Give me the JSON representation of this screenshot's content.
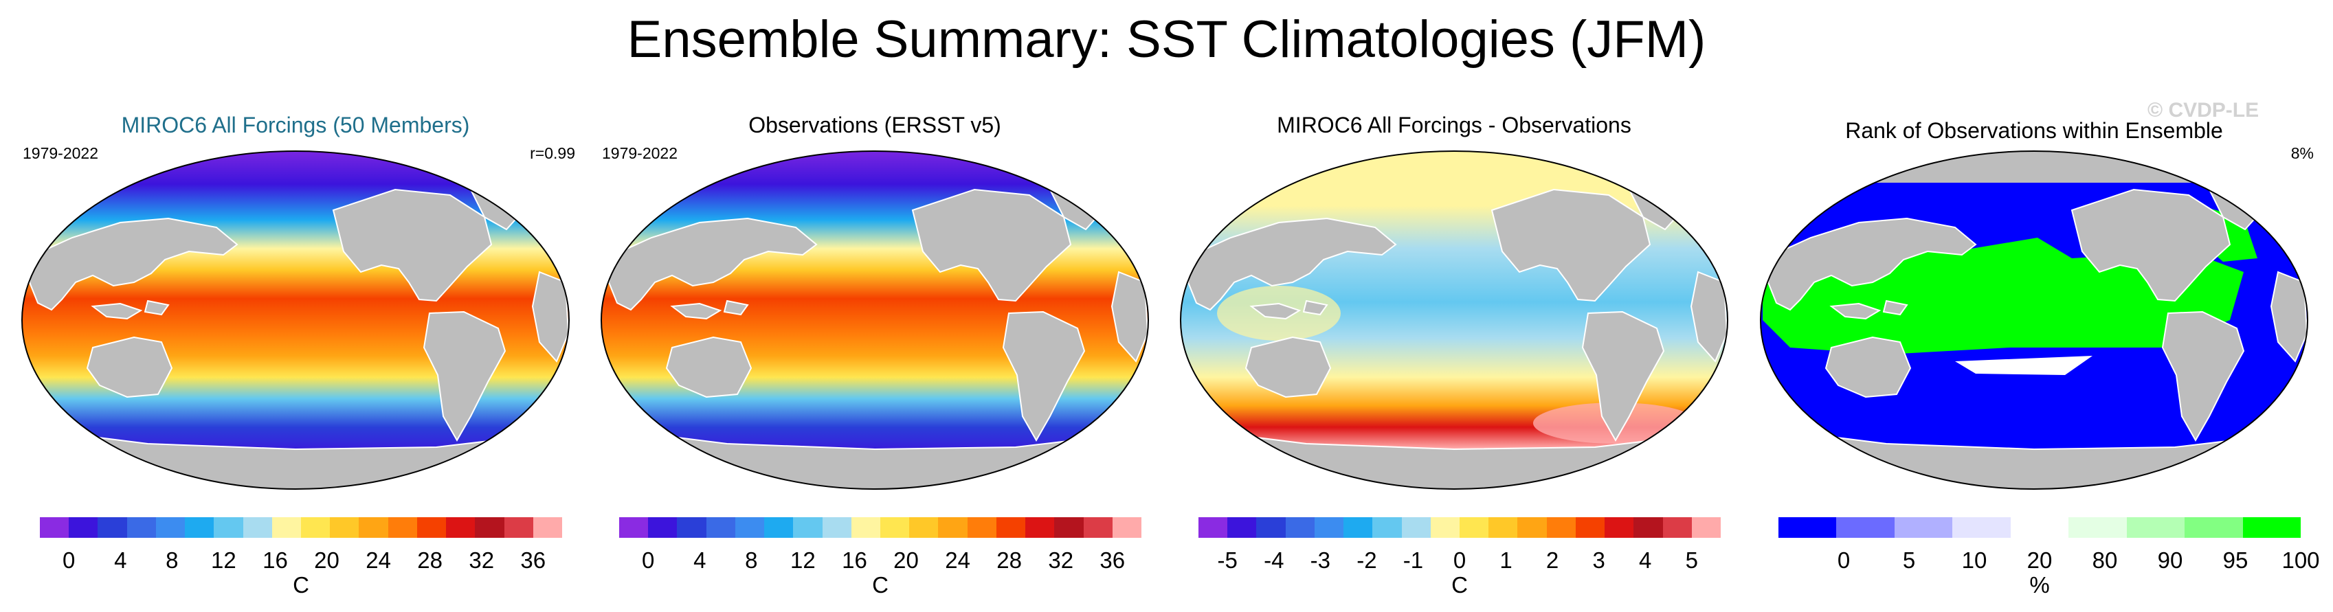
{
  "title": "Ensemble Summary: SST Climatologies (JFM)",
  "watermark": "© CVDP-LE",
  "panels": [
    {
      "title": "MIROC6 All Forcings (50 Members)",
      "left_label": "1979-2022",
      "right_label": "r=0.99",
      "unit": "C",
      "ticks": [
        "0",
        "4",
        "8",
        "12",
        "16",
        "20",
        "24",
        "28",
        "32",
        "36"
      ],
      "colors": [
        "#8a2be2",
        "#3c14dc",
        "#2a3fd8",
        "#3a6ae6",
        "#3c8cf0",
        "#1eaaf0",
        "#64c8f0",
        "#a8dcf0",
        "#fff5a0",
        "#ffe650",
        "#ffc828",
        "#ffa514",
        "#ff7d0a",
        "#f54100",
        "#dc1414",
        "#b4141e",
        "#dc3c46",
        "#ffaaaa"
      ],
      "map": "sst"
    },
    {
      "title": "Observations (ERSST v5)",
      "left_label": "1979-2022",
      "right_label": "",
      "unit": "C",
      "ticks": [
        "0",
        "4",
        "8",
        "12",
        "16",
        "20",
        "24",
        "28",
        "32",
        "36"
      ],
      "colors": [
        "#8a2be2",
        "#3c14dc",
        "#2a3fd8",
        "#3a6ae6",
        "#3c8cf0",
        "#1eaaf0",
        "#64c8f0",
        "#a8dcf0",
        "#fff5a0",
        "#ffe650",
        "#ffc828",
        "#ffa514",
        "#ff7d0a",
        "#f54100",
        "#dc1414",
        "#b4141e",
        "#dc3c46",
        "#ffaaaa"
      ],
      "map": "sst"
    },
    {
      "title": "MIROC6 All Forcings - Observations",
      "left_label": "",
      "right_label": "",
      "unit": "C",
      "ticks": [
        "-5",
        "-4",
        "-3",
        "-2",
        "-1",
        "0",
        "1",
        "2",
        "3",
        "4",
        "5"
      ],
      "colors": [
        "#8a2be2",
        "#3c14dc",
        "#2a3fd8",
        "#3a6ae6",
        "#3c8cf0",
        "#1eaaf0",
        "#64c8f0",
        "#a8dcf0",
        "#fff5a0",
        "#ffe650",
        "#ffc828",
        "#ffa514",
        "#ff7d0a",
        "#f54100",
        "#dc1414",
        "#b4141e",
        "#dc3c46",
        "#ffaaaa"
      ],
      "map": "diff"
    },
    {
      "title": "Rank of Observations within Ensemble",
      "left_label": "",
      "right_label": "8%",
      "unit": "%",
      "ticks": [
        "0",
        "5",
        "10",
        "20",
        "80",
        "90",
        "95",
        "100"
      ],
      "colors": [
        "#0000ff",
        "#6b6bff",
        "#b0b0ff",
        "#e4e4ff",
        "#ffffff",
        "#e4ffe4",
        "#b4ffb4",
        "#82ff82",
        "#00ff00"
      ],
      "map": "rank"
    }
  ]
}
